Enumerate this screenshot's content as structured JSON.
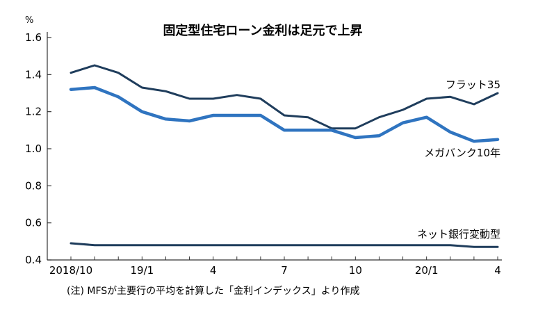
{
  "chart_data": {
    "type": "line",
    "title": "固定型住宅ローン金利は足元で上昇",
    "unit_label": "%",
    "note": "(注) MFSが主要行の平均を計算した「金利インデックス」より作成",
    "ylim": [
      0.4,
      1.6
    ],
    "y_ticks": [
      "0.4",
      "0.6",
      "0.8",
      "1.0",
      "1.2",
      "1.4",
      "1.6"
    ],
    "x": [
      "2018/10",
      "2018/11",
      "2018/12",
      "2019/1",
      "2019/2",
      "2019/3",
      "2019/4",
      "2019/5",
      "2019/6",
      "2019/7",
      "2019/8",
      "2019/9",
      "2019/10",
      "2019/11",
      "2019/12",
      "2020/1",
      "2020/2",
      "2020/3",
      "2020/4"
    ],
    "x_tick_labels": [
      {
        "i": 0,
        "label": "2018/10"
      },
      {
        "i": 3,
        "label": "19/1"
      },
      {
        "i": 6,
        "label": "4"
      },
      {
        "i": 9,
        "label": "7"
      },
      {
        "i": 12,
        "label": "10"
      },
      {
        "i": 15,
        "label": "20/1"
      },
      {
        "i": 18,
        "label": "4"
      }
    ],
    "grid": false,
    "series": [
      {
        "name": "フラット35",
        "color": "#1f3d5c",
        "values": [
          1.41,
          1.45,
          1.41,
          1.33,
          1.31,
          1.27,
          1.27,
          1.29,
          1.27,
          1.18,
          1.17,
          1.11,
          1.11,
          1.17,
          1.21,
          1.27,
          1.28,
          1.24,
          1.3
        ]
      },
      {
        "name": "メガバンク10年",
        "color": "#2f74c0",
        "values": [
          1.32,
          1.33,
          1.28,
          1.2,
          1.16,
          1.15,
          1.18,
          1.18,
          1.18,
          1.1,
          1.1,
          1.1,
          1.06,
          1.07,
          1.14,
          1.17,
          1.09,
          1.04,
          1.05
        ]
      },
      {
        "name": "ネット銀行変動型",
        "color": "#1f3d5c",
        "values": [
          0.49,
          0.48,
          0.48,
          0.48,
          0.48,
          0.48,
          0.48,
          0.48,
          0.48,
          0.48,
          0.48,
          0.48,
          0.48,
          0.48,
          0.48,
          0.48,
          0.48,
          0.47,
          0.47
        ]
      }
    ]
  }
}
